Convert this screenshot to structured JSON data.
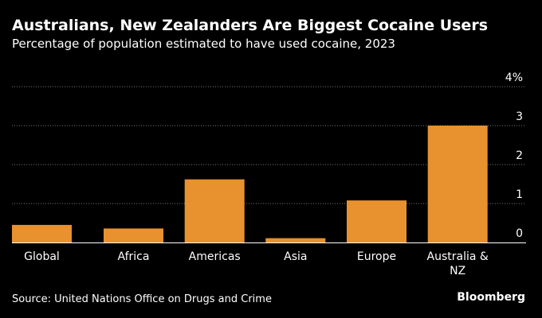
{
  "header": {
    "title": "Australians, New Zealanders Are Biggest Cocaine Users",
    "subtitle": "Percentage of population estimated to have used cocaine, 2023"
  },
  "footer": {
    "source": "Source: United Nations Office on Drugs and Crime",
    "brand": "Bloomberg"
  },
  "colors": {
    "background": "#000000",
    "bar": "#e8912f",
    "grid": "#777777",
    "text": "#ffffff"
  },
  "chart_data": {
    "type": "bar",
    "title": "Australians, New Zealanders Are Biggest Cocaine Users",
    "subtitle": "Percentage of population estimated to have used cocaine, 2023",
    "categories": [
      "Global",
      "Africa",
      "Americas",
      "Asia",
      "Europe",
      "Australia & NZ"
    ],
    "category_lines": [
      [
        "Global"
      ],
      [
        "Africa"
      ],
      [
        "Americas"
      ],
      [
        "Asia"
      ],
      [
        "Europe"
      ],
      [
        "Australia &",
        "NZ"
      ]
    ],
    "values": [
      0.45,
      0.36,
      1.62,
      0.11,
      1.08,
      3.0
    ],
    "ylim": [
      0,
      4
    ],
    "yticks": [
      0,
      1,
      2,
      3,
      4
    ],
    "ytick_labels": [
      "0",
      "1",
      "2",
      "3",
      "4%"
    ],
    "grid": true,
    "axis_side": "right"
  }
}
